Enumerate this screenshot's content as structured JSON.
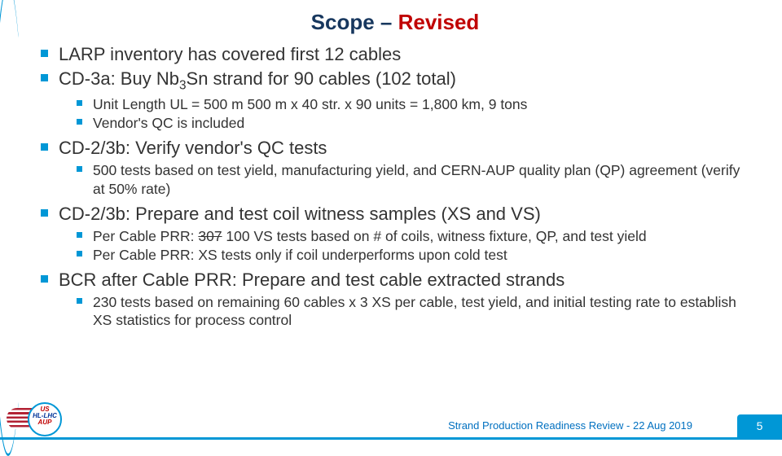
{
  "title": {
    "part1": "Scope – ",
    "part2": "Revised"
  },
  "colors": {
    "accent": "#0097d6",
    "title_dark": "#17375e",
    "title_red": "#c00000",
    "footer_text": "#0070c0"
  },
  "bullets": [
    {
      "text": "LARP inventory has covered first 12 cables"
    },
    {
      "text_pre": "CD-3a: Buy Nb",
      "sub": "3",
      "text_post": "Sn strand for 90 cables (102 total)",
      "children": [
        {
          "text": "Unit Length UL = 500 m 500 m x 40 str. x 90 units = 1,800 km, 9 tons"
        },
        {
          "text": "Vendor's QC is included"
        }
      ]
    },
    {
      "text": "CD-2/3b: Verify vendor's QC tests",
      "children": [
        {
          "text": "500 tests based on test yield, manufacturing yield, and CERN-AUP quality plan (QP) agreement (verify at 50% rate)"
        }
      ]
    },
    {
      "text": "CD-2/3b: Prepare and test coil witness samples (XS and VS)",
      "children": [
        {
          "text_pre": "Per Cable PRR: ",
          "strike": "307",
          "text_post": " 100 VS tests based on # of coils, witness fixture, QP, and test yield"
        },
        {
          "text": "Per Cable PRR: XS tests only if coil underperforms upon cold test"
        }
      ]
    },
    {
      "text": "BCR after Cable PRR: Prepare and test cable extracted strands",
      "children": [
        {
          "text": "230 tests based on remaining 60 cables x 3 XS per cable, test yield, and initial testing rate to establish XS statistics for process control"
        }
      ]
    }
  ],
  "footer": {
    "text": "Strand Production Readiness Review - 22 Aug 2019",
    "page": "5"
  },
  "logo": {
    "line1": "US",
    "line2": "HL-LHC",
    "line3": "AUP"
  }
}
